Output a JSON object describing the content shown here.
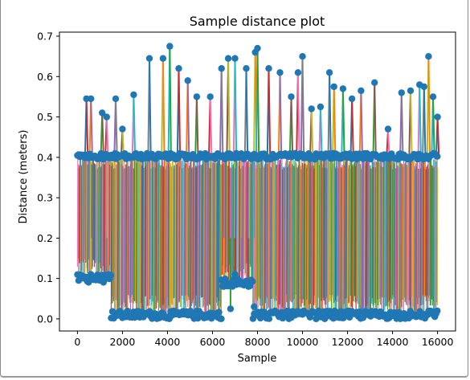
{
  "chart_data": {
    "type": "line",
    "title": "Sample distance plot",
    "xlabel": "Sample",
    "ylabel": "Distance (meters)",
    "xlim": [
      -800,
      16800
    ],
    "ylim": [
      -0.03,
      0.71
    ],
    "xticks": [
      0,
      2000,
      4000,
      6000,
      8000,
      10000,
      12000,
      14000,
      16000
    ],
    "yticks": [
      0.0,
      0.1,
      0.2,
      0.3,
      0.4,
      0.5,
      0.6,
      0.7
    ],
    "grid": false,
    "legend": "none",
    "marker": "circle",
    "series_colors": [
      "#1f77b4",
      "#ff7f0e",
      "#2ca02c",
      "#d62728",
      "#9467bd",
      "#8c564b",
      "#e377c2",
      "#7f7f7f",
      "#bcbd22",
      "#17becf"
    ],
    "marker_color": "#1f77b4",
    "segments": [
      {
        "x_start": 0,
        "x_end": 1500,
        "low": 0.09,
        "high": 0.41
      },
      {
        "x_start": 1500,
        "x_end": 6400,
        "low": 0.0,
        "high": 0.41
      },
      {
        "x_start": 6400,
        "x_end": 7800,
        "low": 0.08,
        "high": 0.41
      },
      {
        "x_start": 7800,
        "x_end": 15000,
        "low": 0.0,
        "high": 0.41
      },
      {
        "x_start": 15000,
        "x_end": 16000,
        "low": 0.0,
        "high": 0.41
      }
    ],
    "peaks": [
      {
        "x": 400,
        "y": 0.545
      },
      {
        "x": 600,
        "y": 0.545
      },
      {
        "x": 1100,
        "y": 0.51
      },
      {
        "x": 1300,
        "y": 0.5
      },
      {
        "x": 1700,
        "y": 0.545
      },
      {
        "x": 2000,
        "y": 0.47
      },
      {
        "x": 2500,
        "y": 0.555
      },
      {
        "x": 3200,
        "y": 0.645
      },
      {
        "x": 3800,
        "y": 0.645
      },
      {
        "x": 4100,
        "y": 0.675
      },
      {
        "x": 4500,
        "y": 0.62
      },
      {
        "x": 4900,
        "y": 0.59
      },
      {
        "x": 5300,
        "y": 0.55
      },
      {
        "x": 5900,
        "y": 0.55
      },
      {
        "x": 6400,
        "y": 0.62
      },
      {
        "x": 6700,
        "y": 0.645
      },
      {
        "x": 7000,
        "y": 0.645
      },
      {
        "x": 7500,
        "y": 0.62
      },
      {
        "x": 7900,
        "y": 0.66
      },
      {
        "x": 8000,
        "y": 0.67
      },
      {
        "x": 8500,
        "y": 0.62
      },
      {
        "x": 9000,
        "y": 0.61
      },
      {
        "x": 9500,
        "y": 0.55
      },
      {
        "x": 9800,
        "y": 0.61
      },
      {
        "x": 10000,
        "y": 0.65
      },
      {
        "x": 10400,
        "y": 0.52
      },
      {
        "x": 10800,
        "y": 0.525
      },
      {
        "x": 11200,
        "y": 0.61
      },
      {
        "x": 11400,
        "y": 0.575
      },
      {
        "x": 11800,
        "y": 0.57
      },
      {
        "x": 12200,
        "y": 0.545
      },
      {
        "x": 12600,
        "y": 0.565
      },
      {
        "x": 13200,
        "y": 0.585
      },
      {
        "x": 13800,
        "y": 0.47
      },
      {
        "x": 14400,
        "y": 0.56
      },
      {
        "x": 14800,
        "y": 0.565
      },
      {
        "x": 15200,
        "y": 0.58
      },
      {
        "x": 15400,
        "y": 0.575
      },
      {
        "x": 15600,
        "y": 0.65
      },
      {
        "x": 15800,
        "y": 0.55
      },
      {
        "x": 16000,
        "y": 0.5
      }
    ],
    "dips": [
      {
        "x": 6500,
        "y": 0.08
      },
      {
        "x": 6800,
        "y": 0.025
      },
      {
        "x": 7000,
        "y": 0.11
      },
      {
        "x": 7300,
        "y": 0.09
      },
      {
        "x": 7600,
        "y": 0.08
      },
      {
        "x": 7850,
        "y": 0.03
      },
      {
        "x": 1300,
        "y": 0.1
      },
      {
        "x": 600,
        "y": 0.11
      }
    ]
  }
}
